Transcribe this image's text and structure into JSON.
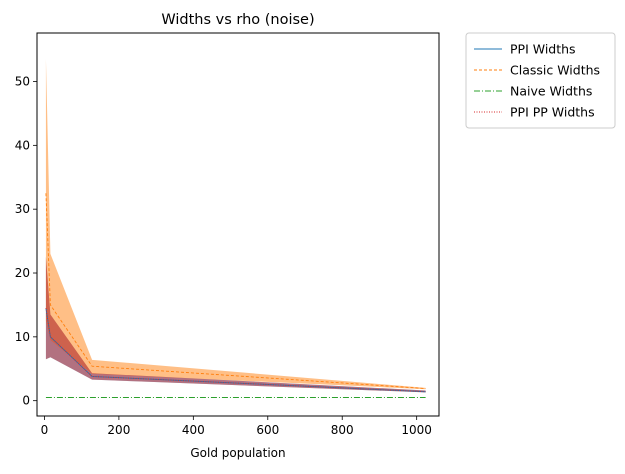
{
  "chart_data": {
    "type": "line",
    "title": "Widths vs rho (noise)",
    "xlabel": "Gold population",
    "ylabel": "",
    "xlim": [
      -20,
      1060
    ],
    "ylim": [
      -2.4,
      57.6
    ],
    "xticks": [
      0,
      200,
      400,
      600,
      800,
      1000
    ],
    "yticks": [
      0,
      10,
      20,
      30,
      40,
      50
    ],
    "grid": false,
    "legend_position": "outside-top-right",
    "x": [
      4,
      16,
      128,
      1024
    ],
    "series": [
      {
        "name": "PPI Widths",
        "values": [
          14.5,
          10.0,
          3.8,
          1.4
        ],
        "lower": [
          6.5,
          6.8,
          3.3,
          1.3
        ],
        "upper": [
          22.5,
          13.5,
          4.3,
          1.6
        ],
        "color": "#1f77b4",
        "fill_color": "#1f77b4",
        "dash": ""
      },
      {
        "name": "Classic Widths",
        "values": [
          32.5,
          15.0,
          5.4,
          1.9
        ],
        "lower": [
          12.5,
          9.5,
          4.2,
          1.8
        ],
        "upper": [
          53.5,
          23.0,
          6.4,
          2.0
        ],
        "color": "#ff7f0e",
        "fill_color": "#ff7f0e",
        "dash": "3,2"
      },
      {
        "name": "Naive Widths",
        "values": [
          0.5,
          0.5,
          0.5,
          0.5
        ],
        "lower": [
          0.5,
          0.5,
          0.5,
          0.5
        ],
        "upper": [
          0.5,
          0.5,
          0.5,
          0.5
        ],
        "color": "#2ca02c",
        "fill_color": "#2ca02c",
        "dash": "6,2,1,2"
      },
      {
        "name": "PPI PP Widths",
        "values": [
          14.5,
          10.0,
          3.8,
          1.4
        ],
        "lower": [
          6.5,
          6.8,
          3.3,
          1.3
        ],
        "upper": [
          22.5,
          13.5,
          4.3,
          1.6
        ],
        "color": "#d62728",
        "fill_color": "#d62728",
        "dash": "1,1.5"
      }
    ]
  }
}
